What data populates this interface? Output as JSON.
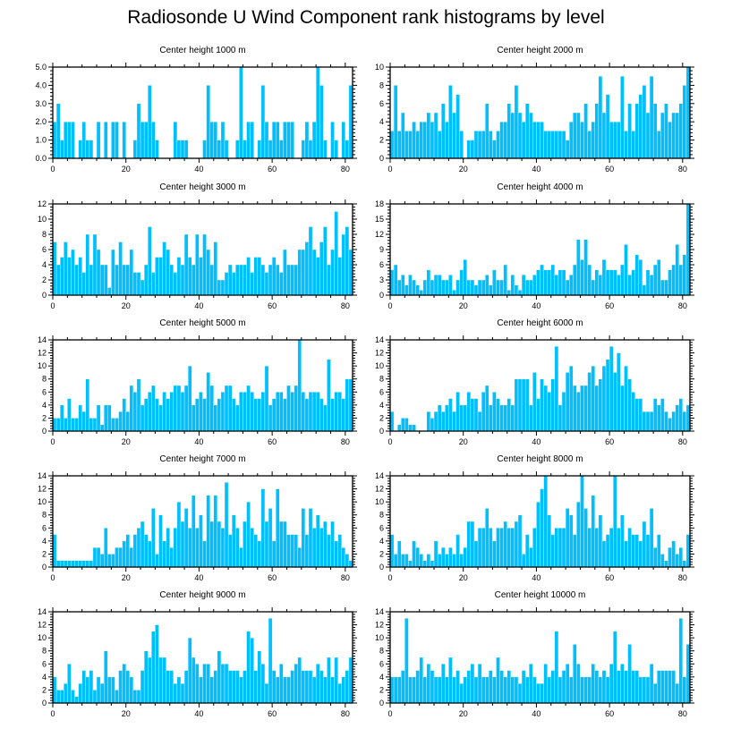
{
  "figure_title": "Radiosonde U Wind Component rank histograms by level",
  "colors": {
    "bar": "#00bfff",
    "bar_edge": "#ffffff",
    "axis": "#000000"
  },
  "chart_data": [
    {
      "type": "bar",
      "title": "Center height 1000 m",
      "xlim": [
        0,
        82
      ],
      "ylim": [
        0,
        5
      ],
      "y_ticks": [
        0,
        1,
        2,
        3,
        4,
        5
      ],
      "y_tick_labels": [
        "0.0",
        "1.0",
        "2.0",
        "3.0",
        "4.0",
        "5.0"
      ],
      "x_ticks": [
        0,
        20,
        40,
        60,
        80
      ],
      "x_tick_labels": [
        "0",
        "20",
        "40",
        "60",
        "80"
      ],
      "values": [
        2,
        3,
        1,
        2,
        2,
        2,
        0,
        1,
        2,
        1,
        1,
        0,
        2,
        0,
        2,
        0,
        2,
        2,
        0,
        2,
        0,
        0,
        1,
        3,
        2,
        2,
        4,
        2,
        1,
        0,
        0,
        0,
        0,
        2,
        1,
        1,
        1,
        0,
        0,
        0,
        0,
        1,
        4,
        2,
        2,
        1,
        2,
        1,
        0,
        0,
        1,
        5,
        1,
        2,
        2,
        0,
        1,
        4,
        2,
        1,
        2,
        2,
        1,
        2,
        2,
        2,
        0,
        0,
        1,
        2,
        1,
        2,
        5,
        4,
        1,
        0,
        2,
        1,
        0,
        2,
        1,
        4
      ]
    },
    {
      "type": "bar",
      "title": "Center height 2000 m",
      "xlim": [
        0,
        82
      ],
      "ylim": [
        0,
        10
      ],
      "y_ticks": [
        0,
        2,
        4,
        6,
        8,
        10
      ],
      "y_tick_labels": [
        "0",
        "2",
        "4",
        "6",
        "8",
        "10"
      ],
      "x_ticks": [
        0,
        20,
        40,
        60,
        80
      ],
      "x_tick_labels": [
        "0",
        "20",
        "40",
        "60",
        "80"
      ],
      "values": [
        3,
        8,
        3,
        5,
        3,
        3,
        4,
        3,
        4,
        4,
        5,
        4,
        5,
        3,
        6,
        4,
        8,
        5,
        7,
        3,
        0,
        2,
        2,
        3,
        3,
        3,
        6,
        3,
        2,
        3,
        4,
        4,
        6,
        5,
        8,
        5,
        4,
        6,
        5,
        4,
        4,
        4,
        3,
        3,
        3,
        3,
        3,
        3,
        2,
        4,
        5,
        5,
        4,
        6,
        3,
        4,
        6,
        9,
        5,
        7,
        4,
        4,
        4,
        9,
        3,
        6,
        3,
        6,
        7,
        8,
        5,
        9,
        6,
        3,
        5,
        6,
        4,
        5,
        5,
        6,
        8,
        10
      ]
    },
    {
      "type": "bar",
      "title": "Center height 3000 m",
      "xlim": [
        0,
        82
      ],
      "ylim": [
        0,
        12
      ],
      "y_ticks": [
        0,
        2,
        4,
        6,
        8,
        10,
        12
      ],
      "y_tick_labels": [
        "0",
        "2",
        "4",
        "6",
        "8",
        "10",
        "12"
      ],
      "x_ticks": [
        0,
        20,
        40,
        60,
        80
      ],
      "x_tick_labels": [
        "0",
        "20",
        "40",
        "60",
        "80"
      ],
      "values": [
        7,
        4,
        5,
        7,
        5,
        6,
        4,
        5,
        3,
        8,
        4,
        8,
        6,
        4,
        4,
        1,
        6,
        4,
        7,
        4,
        4,
        6,
        3,
        3,
        2,
        4,
        9,
        3,
        5,
        5,
        7,
        6,
        4,
        3,
        5,
        4,
        8,
        5,
        4,
        8,
        5,
        8,
        6,
        4,
        7,
        2,
        2,
        3,
        4,
        3,
        4,
        4,
        4,
        5,
        3,
        5,
        5,
        4,
        3,
        4,
        5,
        4,
        3,
        6,
        4,
        4,
        4,
        6,
        6,
        7,
        9,
        6,
        5,
        7,
        9,
        4,
        6,
        11,
        5,
        8,
        9,
        6
      ]
    },
    {
      "type": "bar",
      "title": "Center height 4000 m",
      "xlim": [
        0,
        82
      ],
      "ylim": [
        0,
        18
      ],
      "y_ticks": [
        0,
        3,
        6,
        9,
        12,
        15,
        18
      ],
      "y_tick_labels": [
        "0",
        "3",
        "6",
        "9",
        "12",
        "15",
        "18"
      ],
      "x_ticks": [
        0,
        20,
        40,
        60,
        80
      ],
      "x_tick_labels": [
        "0",
        "20",
        "40",
        "60",
        "80"
      ],
      "values": [
        5,
        6,
        3,
        4,
        2,
        4,
        3,
        2,
        1,
        3,
        5,
        3,
        4,
        4,
        3,
        3,
        4,
        1,
        3,
        5,
        7,
        3,
        3,
        2,
        3,
        3,
        4,
        2,
        5,
        3,
        3,
        6,
        1,
        4,
        2,
        1,
        4,
        3,
        3,
        4,
        5,
        6,
        5,
        5,
        6,
        4,
        5,
        5,
        3,
        4,
        6,
        11,
        7,
        11,
        6,
        3,
        5,
        4,
        7,
        5,
        5,
        5,
        4,
        6,
        10,
        4,
        5,
        8,
        7,
        2,
        5,
        4,
        6,
        7,
        3,
        3,
        5,
        6,
        10,
        6,
        8,
        18
      ]
    },
    {
      "type": "bar",
      "title": "Center height 5000 m",
      "xlim": [
        0,
        82
      ],
      "ylim": [
        0,
        14
      ],
      "y_ticks": [
        0,
        2,
        4,
        6,
        8,
        10,
        12,
        14
      ],
      "y_tick_labels": [
        "0",
        "2",
        "4",
        "6",
        "8",
        "10",
        "12",
        "14"
      ],
      "x_ticks": [
        0,
        20,
        40,
        60,
        80
      ],
      "x_tick_labels": [
        "0",
        "20",
        "40",
        "60",
        "80"
      ],
      "values": [
        2,
        2,
        4,
        2,
        5,
        2,
        2,
        4,
        3,
        8,
        2,
        2,
        4,
        1,
        4,
        4,
        2,
        2,
        3,
        5,
        3,
        7,
        6,
        8,
        4,
        5,
        6,
        7,
        5,
        4,
        6,
        5,
        6,
        7,
        7,
        6,
        7,
        10,
        4,
        5,
        6,
        5,
        9,
        7,
        4,
        5,
        6,
        7,
        7,
        5,
        4,
        6,
        6,
        7,
        6,
        5,
        5,
        6,
        10,
        4,
        5,
        6,
        6,
        5,
        7,
        6,
        7,
        14,
        6,
        5,
        6,
        6,
        6,
        5,
        4,
        11,
        5,
        6,
        6,
        5,
        8,
        8
      ]
    },
    {
      "type": "bar",
      "title": "Center height 6000 m",
      "xlim": [
        0,
        82
      ],
      "ylim": [
        0,
        14
      ],
      "y_ticks": [
        0,
        2,
        4,
        6,
        8,
        10,
        12,
        14
      ],
      "y_tick_labels": [
        "0",
        "2",
        "4",
        "6",
        "8",
        "10",
        "12",
        "14"
      ],
      "x_ticks": [
        0,
        20,
        40,
        60,
        80
      ],
      "x_tick_labels": [
        "0",
        "20",
        "40",
        "60",
        "80"
      ],
      "values": [
        3,
        0,
        1,
        2,
        2,
        1,
        1,
        0,
        0,
        0,
        3,
        2,
        3,
        4,
        3,
        4,
        5,
        3,
        6,
        4,
        4,
        6,
        5,
        5,
        3,
        6,
        7,
        4,
        6,
        5,
        4,
        4,
        5,
        4,
        8,
        8,
        8,
        8,
        4,
        9,
        5,
        8,
        7,
        6,
        8,
        13,
        4,
        6,
        9,
        10,
        7,
        6,
        7,
        7,
        9,
        10,
        7,
        8,
        10,
        11,
        13,
        9,
        12,
        7,
        10,
        8,
        6,
        5,
        5,
        3,
        3,
        3,
        5,
        4,
        5,
        3,
        2,
        3,
        4,
        5,
        3,
        4
      ]
    },
    {
      "type": "bar",
      "title": "Center height 7000 m",
      "xlim": [
        0,
        82
      ],
      "ylim": [
        0,
        14
      ],
      "y_ticks": [
        0,
        2,
        4,
        6,
        8,
        10,
        12,
        14
      ],
      "y_tick_labels": [
        "0",
        "2",
        "4",
        "6",
        "8",
        "10",
        "12",
        "14"
      ],
      "x_ticks": [
        0,
        20,
        40,
        60,
        80
      ],
      "x_tick_labels": [
        "0",
        "20",
        "40",
        "60",
        "80"
      ],
      "values": [
        5,
        1,
        1,
        1,
        1,
        1,
        1,
        1,
        1,
        1,
        1,
        3,
        3,
        2,
        6,
        2,
        2,
        3,
        3,
        4,
        5,
        3,
        5,
        6,
        7,
        5,
        4,
        9,
        2,
        8,
        4,
        6,
        3,
        6,
        10,
        7,
        9,
        6,
        11,
        6,
        8,
        4,
        11,
        7,
        11,
        7,
        6,
        13,
        5,
        8,
        6,
        3,
        7,
        10,
        6,
        5,
        4,
        12,
        7,
        9,
        4,
        12,
        7,
        7,
        5,
        5,
        5,
        3,
        9,
        5,
        9,
        6,
        8,
        6,
        7,
        5,
        7,
        4,
        5,
        3,
        2,
        1
      ]
    },
    {
      "type": "bar",
      "title": "Center height 8000 m",
      "xlim": [
        0,
        82
      ],
      "ylim": [
        0,
        14
      ],
      "y_ticks": [
        0,
        2,
        4,
        6,
        8,
        10,
        12,
        14
      ],
      "y_tick_labels": [
        "0",
        "2",
        "4",
        "6",
        "8",
        "10",
        "12",
        "14"
      ],
      "x_ticks": [
        0,
        20,
        40,
        60,
        80
      ],
      "x_tick_labels": [
        "0",
        "20",
        "40",
        "60",
        "80"
      ],
      "values": [
        5,
        2,
        4,
        2,
        2,
        1,
        4,
        3,
        2,
        1,
        2,
        1,
        4,
        2,
        3,
        2,
        3,
        2,
        5,
        2,
        3,
        7,
        7,
        4,
        6,
        6,
        9,
        6,
        4,
        6,
        6,
        7,
        6,
        6,
        7,
        8,
        2,
        5,
        3,
        6,
        10,
        12,
        14,
        8,
        5,
        6,
        6,
        6,
        9,
        8,
        5,
        10,
        14,
        9,
        6,
        11,
        6,
        8,
        4,
        5,
        6,
        14,
        6,
        8,
        4,
        6,
        5,
        5,
        4,
        7,
        5,
        9,
        3,
        5,
        2,
        1,
        3,
        4,
        2,
        3,
        1,
        5
      ]
    },
    {
      "type": "bar",
      "title": "Center height 9000 m",
      "xlim": [
        0,
        82
      ],
      "ylim": [
        0,
        14
      ],
      "y_ticks": [
        0,
        2,
        4,
        6,
        8,
        10,
        12,
        14
      ],
      "y_tick_labels": [
        "0",
        "2",
        "4",
        "6",
        "8",
        "10",
        "12",
        "14"
      ],
      "x_ticks": [
        0,
        20,
        40,
        60,
        80
      ],
      "x_tick_labels": [
        "0",
        "20",
        "40",
        "60",
        "80"
      ],
      "values": [
        4,
        2,
        2,
        3,
        6,
        2,
        1,
        3,
        5,
        4,
        5,
        2,
        4,
        3,
        8,
        4,
        4,
        2,
        5,
        6,
        5,
        4,
        2,
        2,
        5,
        8,
        7,
        11,
        12,
        7,
        7,
        5,
        5,
        3,
        4,
        3,
        5,
        10,
        7,
        6,
        4,
        6,
        6,
        4,
        5,
        8,
        6,
        6,
        5,
        5,
        5,
        4,
        5,
        11,
        10,
        5,
        8,
        6,
        3,
        13,
        5,
        4,
        6,
        4,
        4,
        5,
        6,
        7,
        5,
        5,
        5,
        4,
        6,
        5,
        4,
        7,
        4,
        7,
        3,
        4,
        5,
        7
      ]
    },
    {
      "type": "bar",
      "title": "Center height 10000 m",
      "xlim": [
        0,
        82
      ],
      "ylim": [
        0,
        14
      ],
      "y_ticks": [
        0,
        2,
        4,
        6,
        8,
        10,
        12,
        14
      ],
      "y_tick_labels": [
        "0",
        "2",
        "4",
        "6",
        "8",
        "10",
        "12",
        "14"
      ],
      "x_ticks": [
        0,
        20,
        40,
        60,
        80
      ],
      "x_tick_labels": [
        "0",
        "20",
        "40",
        "60",
        "80"
      ],
      "values": [
        4,
        4,
        4,
        5,
        13,
        4,
        4,
        5,
        7,
        4,
        6,
        5,
        4,
        4,
        6,
        4,
        7,
        4,
        5,
        3,
        4,
        5,
        6,
        4,
        6,
        4,
        4,
        5,
        4,
        7,
        5,
        4,
        5,
        4,
        4,
        3,
        5,
        4,
        6,
        4,
        3,
        3,
        6,
        4,
        5,
        11,
        4,
        5,
        6,
        4,
        9,
        6,
        4,
        4,
        4,
        6,
        5,
        4,
        5,
        4,
        6,
        11,
        5,
        6,
        5,
        9,
        5,
        5,
        4,
        4,
        4,
        6,
        3,
        5,
        5,
        5,
        5,
        5,
        3,
        13,
        4,
        9
      ]
    }
  ]
}
